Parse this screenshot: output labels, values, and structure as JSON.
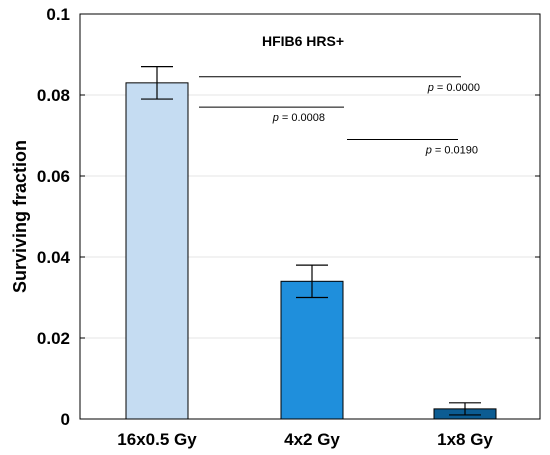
{
  "chart_data": {
    "type": "bar",
    "title": "HFIB6 HRS+",
    "xlabel": "",
    "ylabel": "Surviving fraction",
    "ylim": [
      0,
      0.1
    ],
    "yticks": [
      "0",
      "0.02",
      "0.04",
      "0.06",
      "0.08",
      "0.1"
    ],
    "yticks_values": [
      0,
      0.02,
      0.04,
      0.06,
      0.08,
      0.1
    ],
    "categories": [
      "16x0.5 Gy",
      "4x2 Gy",
      "1x8 Gy"
    ],
    "values": [
      0.083,
      0.034,
      0.0025
    ],
    "errors": [
      0.004,
      0.004,
      0.0015
    ],
    "bar_colors": [
      "#c5dcf2",
      "#1f8fdc",
      "#0c5c92"
    ],
    "grid": "horizontal-light",
    "comparisons": [
      {
        "from": 0,
        "to": 2,
        "p_prefix": "p",
        "p_text": " = 0.0000",
        "y": 0.0845
      },
      {
        "from": 0,
        "to": 1,
        "p_prefix": "p",
        "p_text": " = 0.0008",
        "y": 0.077
      },
      {
        "from": 1,
        "to": 2,
        "p_prefix": "p",
        "p_text": " = 0.0190",
        "y": 0.069
      }
    ]
  }
}
